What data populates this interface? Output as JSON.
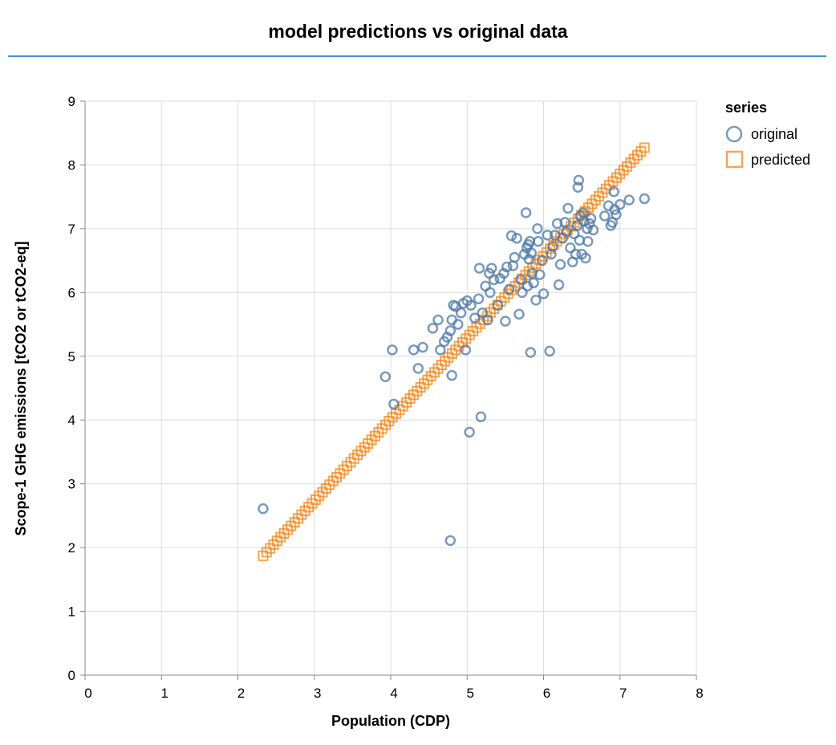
{
  "chart_data": {
    "type": "scatter",
    "title": "model predictions vs original data",
    "xlabel": "Population (CDP)",
    "ylabel": "Scope-1 GHG emissions [tCO2 or tCO2-eq]",
    "xlim": [
      0,
      8
    ],
    "ylim": [
      0,
      9
    ],
    "xticks": [
      "0",
      "1",
      "2",
      "3",
      "4",
      "5",
      "6",
      "7",
      "8"
    ],
    "yticks": [
      "0",
      "1",
      "2",
      "3",
      "4",
      "5",
      "6",
      "7",
      "8",
      "9"
    ],
    "grid": true,
    "legend": {
      "title": "series",
      "placement": "right"
    },
    "series": [
      {
        "name": "original",
        "marker": "circle",
        "color": "#4c78a8",
        "points": [
          [
            2.33,
            2.61
          ],
          [
            3.93,
            4.68
          ],
          [
            4.02,
            5.1
          ],
          [
            4.04,
            4.25
          ],
          [
            4.3,
            5.1
          ],
          [
            4.36,
            4.81
          ],
          [
            4.42,
            5.14
          ],
          [
            4.55,
            5.44
          ],
          [
            4.62,
            5.57
          ],
          [
            4.65,
            5.1
          ],
          [
            4.7,
            5.23
          ],
          [
            4.74,
            5.3
          ],
          [
            4.78,
            5.4
          ],
          [
            4.78,
            2.11
          ],
          [
            4.8,
            4.7
          ],
          [
            4.8,
            5.57
          ],
          [
            4.82,
            5.8
          ],
          [
            4.85,
            5.78
          ],
          [
            4.88,
            5.5
          ],
          [
            4.92,
            5.68
          ],
          [
            4.95,
            5.83
          ],
          [
            4.98,
            5.1
          ],
          [
            5.0,
            5.87
          ],
          [
            5.03,
            3.81
          ],
          [
            5.05,
            5.8
          ],
          [
            5.1,
            5.6
          ],
          [
            5.15,
            5.9
          ],
          [
            5.16,
            6.38
          ],
          [
            5.18,
            4.05
          ],
          [
            5.2,
            5.68
          ],
          [
            5.24,
            6.1
          ],
          [
            5.27,
            5.57
          ],
          [
            5.29,
            6.3
          ],
          [
            5.3,
            6.0
          ],
          [
            5.32,
            6.38
          ],
          [
            5.35,
            6.2
          ],
          [
            5.4,
            5.8
          ],
          [
            5.43,
            6.22
          ],
          [
            5.48,
            6.3
          ],
          [
            5.5,
            5.55
          ],
          [
            5.52,
            6.4
          ],
          [
            5.55,
            6.05
          ],
          [
            5.58,
            6.89
          ],
          [
            5.6,
            6.42
          ],
          [
            5.62,
            6.55
          ],
          [
            5.65,
            6.85
          ],
          [
            5.68,
            5.66
          ],
          [
            5.7,
            6.2
          ],
          [
            5.72,
            6.0
          ],
          [
            5.75,
            6.6
          ],
          [
            5.77,
            7.25
          ],
          [
            5.78,
            6.7
          ],
          [
            5.79,
            6.1
          ],
          [
            5.8,
            6.75
          ],
          [
            5.81,
            6.52
          ],
          [
            5.82,
            6.8
          ],
          [
            5.83,
            5.06
          ],
          [
            5.84,
            6.62
          ],
          [
            5.85,
            6.3
          ],
          [
            5.87,
            6.15
          ],
          [
            5.9,
            5.88
          ],
          [
            5.92,
            7.0
          ],
          [
            5.93,
            6.8
          ],
          [
            5.95,
            6.28
          ],
          [
            5.98,
            6.5
          ],
          [
            6.0,
            5.98
          ],
          [
            6.05,
            6.9
          ],
          [
            6.08,
            5.08
          ],
          [
            6.1,
            6.6
          ],
          [
            6.12,
            6.72
          ],
          [
            6.15,
            6.9
          ],
          [
            6.18,
            7.08
          ],
          [
            6.2,
            6.12
          ],
          [
            6.22,
            6.44
          ],
          [
            6.25,
            6.85
          ],
          [
            6.28,
            7.1
          ],
          [
            6.3,
            6.95
          ],
          [
            6.32,
            7.32
          ],
          [
            6.35,
            6.7
          ],
          [
            6.38,
            6.48
          ],
          [
            6.4,
            6.92
          ],
          [
            6.42,
            6.6
          ],
          [
            6.44,
            7.05
          ],
          [
            6.45,
            7.65
          ],
          [
            6.46,
            7.76
          ],
          [
            6.47,
            6.82
          ],
          [
            6.48,
            7.2
          ],
          [
            6.5,
            6.6
          ],
          [
            6.52,
            7.25
          ],
          [
            6.53,
            7.12
          ],
          [
            6.55,
            6.54
          ],
          [
            6.57,
            7.0
          ],
          [
            6.58,
            6.8
          ],
          [
            6.6,
            7.08
          ],
          [
            6.62,
            7.16
          ],
          [
            6.65,
            6.98
          ],
          [
            6.8,
            7.2
          ],
          [
            6.85,
            7.36
          ],
          [
            6.88,
            7.05
          ],
          [
            6.9,
            7.1
          ],
          [
            6.92,
            7.58
          ],
          [
            6.93,
            7.3
          ],
          [
            6.95,
            7.22
          ],
          [
            7.0,
            7.38
          ],
          [
            7.12,
            7.45
          ],
          [
            7.32,
            7.47
          ]
        ]
      },
      {
        "name": "predicted",
        "marker": "square",
        "color": "#f58518",
        "line": {
          "x_start": 2.33,
          "y_start": 1.87,
          "x_end": 7.32,
          "y_end": 8.27,
          "count": 110
        }
      }
    ]
  }
}
